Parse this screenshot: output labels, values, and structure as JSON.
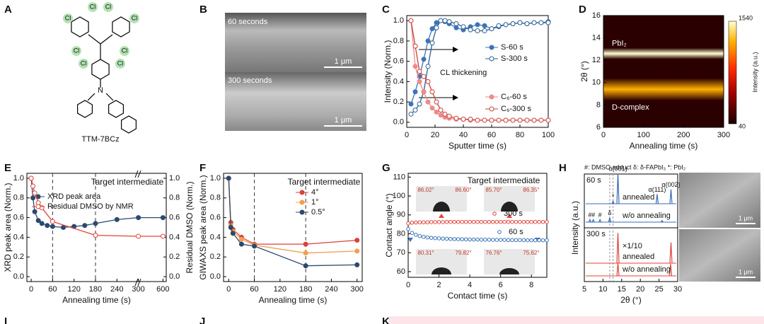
{
  "figure": {
    "panel_labels": [
      "A",
      "B",
      "C",
      "D",
      "E",
      "F",
      "G",
      "H",
      "I",
      "J",
      "K"
    ],
    "structure": {
      "name": "TTM-7BCz",
      "atoms": [
        "Cl",
        "Cl",
        "Cl",
        "Cl",
        "Cl",
        "Cl",
        "Cl",
        "Cl",
        "N"
      ]
    },
    "sem_b": {
      "labels": [
        "60 seconds",
        "300 seconds"
      ],
      "scale_bars": [
        "1 μm",
        "1 μm"
      ]
    },
    "sem_h": {
      "scale_bars": [
        "1 μm",
        "1 μm"
      ]
    }
  },
  "chart_data": [
    {
      "type": "line",
      "xlabel": "Sputter time (s)",
      "ylabel": "Intensity (Norm.)",
      "annotation": "CL thickening",
      "xlim": [
        0,
        100
      ],
      "xticks": [
        0,
        20,
        40,
        60,
        80,
        100
      ],
      "ylim": [
        -0.05,
        1.05
      ],
      "yticks": [
        {
          "value": 0,
          "label": "0.0"
        },
        0.2,
        0.4,
        0.6,
        0.8,
        {
          "value": 1,
          "label": "1.0"
        }
      ],
      "x": [
        3,
        6,
        9,
        12,
        15,
        18,
        21,
        24,
        27,
        30,
        35,
        40,
        45,
        50,
        55,
        60,
        65,
        70,
        75,
        80,
        85,
        90,
        95,
        100
      ],
      "series": [
        {
          "name": "S-60 s",
          "color": "#3d74b8",
          "marker": "filled",
          "values": [
            0.18,
            0.3,
            0.45,
            0.62,
            0.8,
            0.92,
            0.98,
            1.0,
            0.99,
            0.97,
            0.93,
            0.91,
            0.94,
            0.96,
            0.95,
            0.92,
            0.94,
            0.96,
            0.97,
            0.98,
            0.97,
            0.98,
            0.98,
            0.99
          ]
        },
        {
          "name": "S-300 s",
          "color": "#2e5f93",
          "marker": "open",
          "values": [
            0.08,
            0.12,
            0.18,
            0.3,
            0.55,
            0.78,
            0.93,
            1.0,
            1.0,
            0.99,
            0.97,
            0.94,
            0.91,
            0.9,
            0.9,
            0.92,
            0.95,
            0.96,
            0.97,
            0.98,
            0.97,
            0.98,
            0.98,
            0.98
          ]
        },
        {
          "name": "C₆-60 s",
          "color": "#ef8a8a",
          "marker": "filled",
          "values": [
            1.0,
            0.55,
            0.4,
            0.3,
            0.2,
            0.14,
            0.1,
            0.07,
            0.05,
            0.04,
            0.03,
            0.03,
            0.02,
            0.02,
            0.02,
            0.02,
            0.02,
            0.02,
            0.02,
            0.02,
            0.02,
            0.02,
            0.02,
            0.02
          ]
        },
        {
          "name": "C₆-300 s",
          "color": "#c8423a",
          "marker": "open",
          "values": [
            1.0,
            0.75,
            0.5,
            0.45,
            0.4,
            0.3,
            0.2,
            0.12,
            0.08,
            0.06,
            0.04,
            0.03,
            0.03,
            0.02,
            0.02,
            0.02,
            0.02,
            0.02,
            0.02,
            0.02,
            0.02,
            0.02,
            0.02,
            0.02
          ]
        }
      ]
    },
    {
      "type": "heatmap",
      "xlabel": "Annealing time (s)",
      "ylabel": "2θ (°)",
      "colorbar_label": "Intensity (a.u.)",
      "xlim": [
        0,
        300
      ],
      "xticks": [
        0,
        100,
        200,
        300
      ],
      "ylim": [
        6,
        16
      ],
      "yticks": [
        6,
        8,
        10,
        12,
        14,
        16
      ],
      "clim": [
        40,
        1540
      ],
      "cticks": [
        40,
        1540
      ],
      "bands": [
        {
          "name": "PbI₂",
          "center": 12.6,
          "width": 0.5,
          "intensity": 1450
        },
        {
          "name": "D-complex",
          "center": 9.4,
          "width": 1.0,
          "intensity": 1150
        }
      ]
    },
    {
      "type": "line",
      "xlabel": "Annealing time (s)",
      "ylabel": "XRD peak area (Norm.)",
      "y2label": "Residual DMSO (Norm.)",
      "legend_title": "Target intermediate",
      "xlim": [
        -12,
        640
      ],
      "xticks": [
        0,
        60,
        120,
        180,
        240,
        300,
        600
      ],
      "ylim": [
        -0.05,
        1.05
      ],
      "yticks": [
        {
          "value": 0,
          "label": "0.0"
        },
        0.2,
        0.4,
        0.6,
        0.8,
        {
          "value": 1,
          "label": "1.0"
        }
      ],
      "y2lim": [
        -0.05,
        1.05
      ],
      "y2ticks": [
        {
          "value": 0,
          "label": "0.0"
        },
        0.2,
        0.4,
        0.6,
        0.8,
        {
          "value": 1,
          "label": "1.0"
        }
      ],
      "vlines": [
        60,
        180
      ],
      "series": [
        {
          "name": "XRD peak area",
          "color": "#2b4a6f",
          "marker": "filled",
          "x": [
            0,
            5,
            10,
            20,
            30,
            45,
            60,
            90,
            120,
            150,
            180,
            240,
            300,
            600
          ],
          "values": [
            1.0,
            0.8,
            0.66,
            0.57,
            0.54,
            0.52,
            0.51,
            0.5,
            0.51,
            0.52,
            0.54,
            0.58,
            0.6,
            0.6
          ]
        },
        {
          "name": "Residual DMSO by NMR",
          "color": "#e0453a",
          "marker": "open",
          "axis": "y2",
          "x": [
            0,
            5,
            10,
            20,
            30,
            60,
            180,
            300,
            600
          ],
          "values": [
            1.0,
            0.92,
            0.85,
            0.75,
            0.7,
            0.56,
            0.42,
            0.41,
            0.41
          ]
        }
      ]
    },
    {
      "type": "line",
      "xlabel": "Annealing time (s)",
      "ylabel": "GIWAXS peak area (Norm.)",
      "legend_title": "Target intermediate",
      "xlim": [
        -12,
        312
      ],
      "xticks": [
        0,
        60,
        120,
        180,
        240,
        300
      ],
      "ylim": [
        -0.05,
        1.05
      ],
      "yticks": [
        {
          "value": 0,
          "label": "0.0"
        },
        0.2,
        0.4,
        0.6,
        0.8,
        {
          "value": 1,
          "label": "1.0"
        }
      ],
      "vlines": [
        60,
        180
      ],
      "series": [
        {
          "name": "4°",
          "color": "#d9423a",
          "marker": "filled",
          "x": [
            0,
            5,
            10,
            30,
            60,
            180,
            300
          ],
          "values": [
            1.0,
            0.55,
            0.48,
            0.4,
            0.33,
            0.33,
            0.37
          ]
        },
        {
          "name": "1°",
          "color": "#f0a050",
          "marker": "filled",
          "x": [
            0,
            5,
            10,
            30,
            60,
            180,
            300
          ],
          "values": [
            1.0,
            0.52,
            0.46,
            0.38,
            0.32,
            0.24,
            0.26
          ]
        },
        {
          "name": "0.5°",
          "color": "#2b4a6f",
          "marker": "filled",
          "x": [
            0,
            5,
            10,
            30,
            60,
            180,
            300
          ],
          "values": [
            1.0,
            0.5,
            0.44,
            0.33,
            0.31,
            0.11,
            0.12
          ]
        }
      ]
    },
    {
      "type": "scatter",
      "xlabel": "Contact time (s)",
      "ylabel": "Contact angle (°)",
      "legend_title": "Target intermediate",
      "droplet_angles": [
        "86.02°",
        "86.60°",
        "85.70°",
        "86.35°",
        "80.31°",
        "79.82°",
        "76.76°",
        "75.62°"
      ],
      "xlim": [
        0,
        9
      ],
      "xticks": [
        0,
        2,
        4,
        6,
        8
      ],
      "ylim": [
        57,
        112
      ],
      "yticks": [
        60,
        70,
        80,
        90,
        100,
        110
      ],
      "x": [
        0,
        0.25,
        0.5,
        0.75,
        1,
        1.25,
        1.5,
        1.75,
        2,
        2.25,
        2.5,
        2.75,
        3,
        3.25,
        3.5,
        3.75,
        4,
        4.25,
        4.5,
        4.75,
        5,
        5.25,
        5.5,
        5.75,
        6,
        6.25,
        6.5,
        6.75,
        7,
        7.25,
        7.5,
        7.75,
        8,
        8.25,
        8.5,
        8.75,
        9
      ],
      "series": [
        {
          "name": "300 s",
          "color": "#e0453a",
          "marker": "open",
          "values": [
            85.5,
            85.9,
            86.0,
            86.1,
            86.1,
            86.1,
            86.2,
            86.2,
            86.2,
            86.2,
            86.3,
            86.3,
            86.3,
            86.3,
            86.3,
            86.3,
            86.3,
            86.3,
            86.3,
            86.3,
            86.3,
            86.3,
            86.3,
            86.3,
            86.3,
            86.3,
            86.3,
            86.3,
            86.3,
            86.3,
            86.3,
            86.3,
            86.3,
            86.3,
            86.3,
            86.3,
            86.3
          ]
        },
        {
          "name": "60 s",
          "color": "#3d74b8",
          "marker": "open",
          "values": [
            82.5,
            80.5,
            79.5,
            78.8,
            78.4,
            78.1,
            77.9,
            77.7,
            77.6,
            77.5,
            77.4,
            77.3,
            77.2,
            77.2,
            77.1,
            77.1,
            77.0,
            77.0,
            77.0,
            76.9,
            76.9,
            76.9,
            76.8,
            76.8,
            76.8,
            76.8,
            76.7,
            76.7,
            76.7,
            76.7,
            76.7,
            76.6,
            76.6,
            76.6,
            76.6,
            76.6,
            76.6
          ]
        }
      ]
    },
    {
      "type": "xrd",
      "legend_note": "#: DMSO adduct  δ: δ-FAPbI₃  *: PbI₂",
      "xlabel": "2θ (°)",
      "ylabel": "Intensity (a.u.)",
      "xlim": [
        5,
        30
      ],
      "xticks": [
        5,
        10,
        15,
        20,
        25,
        30
      ],
      "guides": [
        11.8,
        12.7
      ],
      "traces": [
        {
          "group": "60 s",
          "name": "annealed",
          "color": "#3a6db5",
          "peaks": [
            {
              "x": 12.7,
              "height": 8
            },
            {
              "x": 14.0,
              "height": 95
            },
            {
              "x": 24.5,
              "height": 30
            },
            {
              "x": 28.2,
              "height": 45
            }
          ]
        },
        {
          "name": "w/o annealing",
          "color": "#3a6db5",
          "peaks": [
            {
              "x": 6.5,
              "height": 8
            },
            {
              "x": 7.4,
              "height": 8
            },
            {
              "x": 9.2,
              "height": 8
            },
            {
              "x": 11.8,
              "height": 14
            },
            {
              "x": 25.8,
              "height": 5
            }
          ]
        },
        {
          "group": "300 s",
          "name": "annealed",
          "scale_label": "×1/10",
          "color": "#e0453a",
          "peaks": [
            {
              "x": 14.0,
              "height": 95
            },
            {
              "x": 28.2,
              "height": 65
            }
          ]
        },
        {
          "name": "w/o annealing",
          "color": "#e0453a",
          "peaks": [
            {
              "x": 14.0,
              "height": 40
            },
            {
              "x": 28.1,
              "height": 38
            }
          ]
        }
      ],
      "peak_labels": [
        {
          "text": "α(001)",
          "x": 14.0,
          "trace": 0
        },
        {
          "text": "α(111)",
          "x": 24.5,
          "trace": 0
        },
        {
          "text": "α(002)",
          "x": 28.2,
          "trace": 0
        },
        {
          "text": "*",
          "x": 12.7,
          "trace": 0
        },
        {
          "text": "δ",
          "x": 11.8,
          "trace": 1
        },
        {
          "text": "#",
          "x": 6.5,
          "trace": 1
        },
        {
          "text": "#",
          "x": 7.4,
          "trace": 1
        },
        {
          "text": "#",
          "x": 9.2,
          "trace": 1
        }
      ]
    }
  ]
}
